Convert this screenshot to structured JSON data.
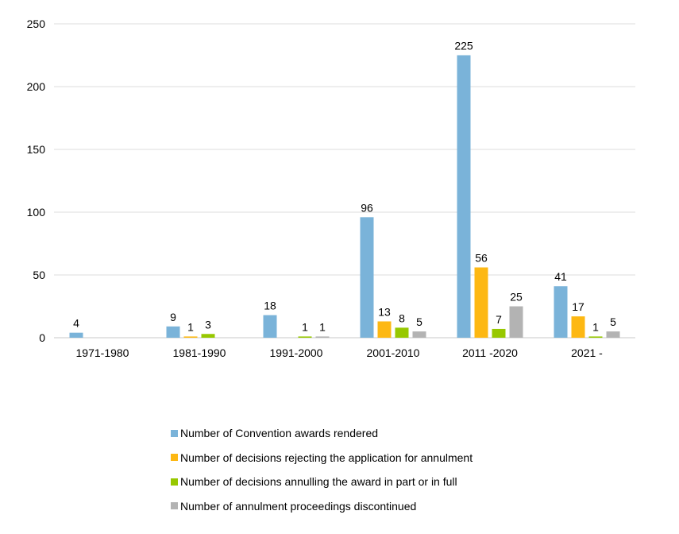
{
  "chart_data": {
    "type": "bar",
    "categories": [
      "1971-1980",
      "1981-1990",
      "1991-2000",
      "2001-2010",
      "2011 -2020",
      "2021 -"
    ],
    "series": [
      {
        "name": "Number of Convention awards rendered",
        "color": "#7ab3d9",
        "values": [
          4,
          9,
          18,
          96,
          225,
          41
        ]
      },
      {
        "name": "Number of decisions rejecting the application for annulment",
        "color": "#fdb813",
        "values": [
          null,
          1,
          null,
          13,
          56,
          17
        ]
      },
      {
        "name": "Number of decisions annulling the award in part or in full",
        "color": "#97c800",
        "values": [
          null,
          3,
          1,
          8,
          7,
          1
        ]
      },
      {
        "name": "Number of annulment proceedings discontinued",
        "color": "#b3b3b3",
        "values": [
          null,
          null,
          1,
          5,
          25,
          5
        ]
      }
    ],
    "ylim": [
      0,
      250
    ],
    "yticks": [
      0,
      50,
      100,
      150,
      200,
      250
    ],
    "grid": true,
    "data_labels": true,
    "legend_placement": "bottom"
  }
}
